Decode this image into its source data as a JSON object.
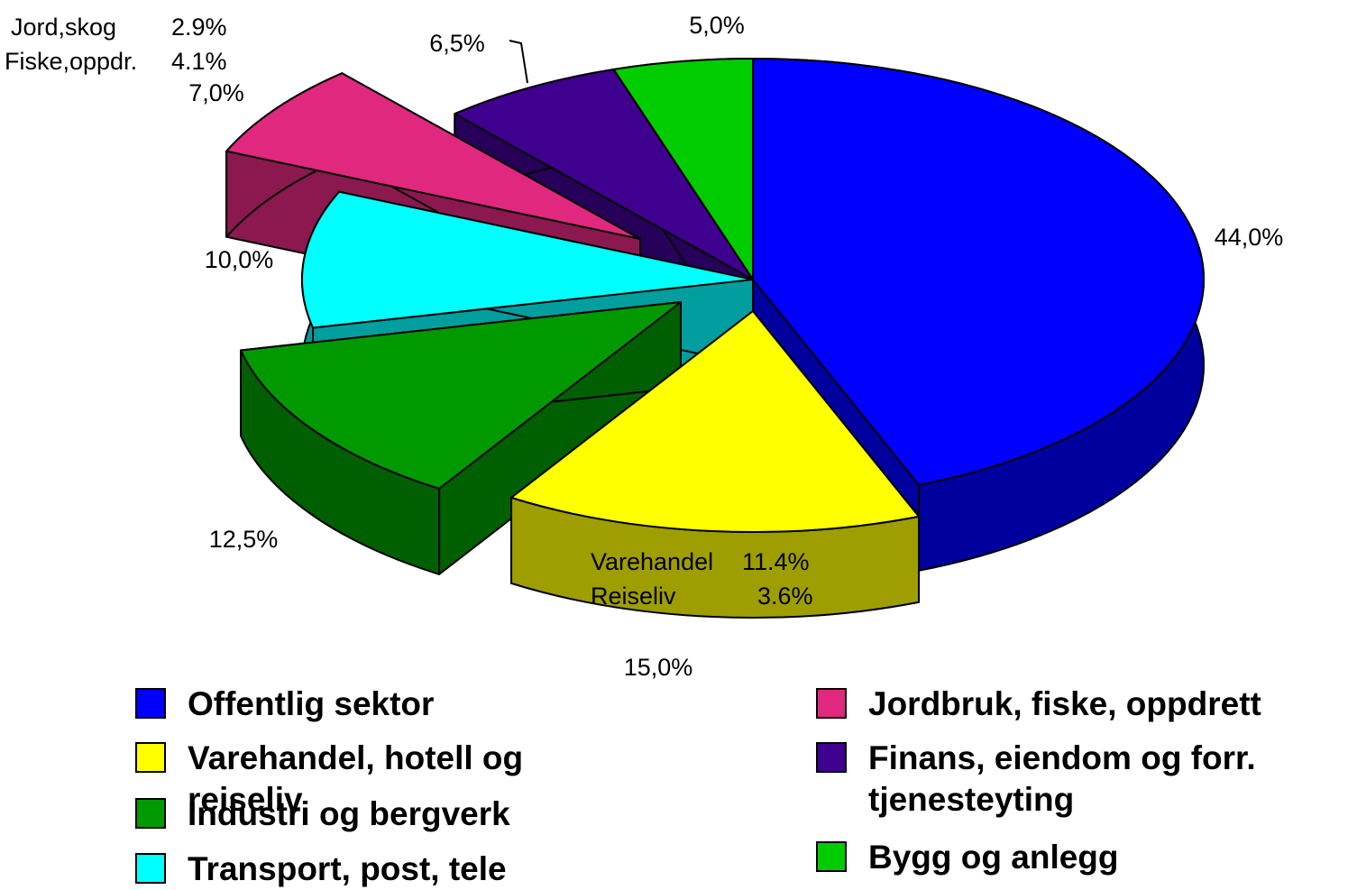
{
  "chart_data": {
    "type": "pie",
    "categories": [
      "Offentlig sektor",
      "Varehandel, hotell og reiseliv",
      "Industri og bergverk",
      "Transport, post, tele",
      "Jordbruk, fiske, oppdrett",
      "Finans, eiendom og forr. tjenesteyting",
      "Bygg og anlegg"
    ],
    "values": [
      44,
      15,
      12.5,
      10,
      7,
      6.5,
      5
    ],
    "value_labels": [
      "44,0%",
      "15,0%",
      "12,5%",
      "10,0%",
      "7,0%",
      "6,5%",
      "5,0%"
    ],
    "colors": [
      "#0000ff",
      "#ffff00",
      "#009900",
      "#00ffff",
      "#e0287f",
      "#3f008f",
      "#00cc00"
    ],
    "annotations": [
      {
        "label": "Jord,skog",
        "value_label": "2.9%"
      },
      {
        "label": "Fiske,oppdr.",
        "value_label": "4.1%"
      },
      {
        "label": "Varehandel",
        "value_label": "11.4%"
      },
      {
        "label": "Reiseliv",
        "value_label": "3.6%"
      }
    ]
  }
}
